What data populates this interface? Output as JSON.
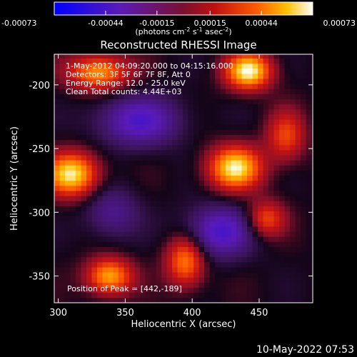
{
  "chart_data": {
    "type": "heatmap",
    "title": "Reconstructed RHESSI Image",
    "xlabel": "Heliocentric X (arcsec)",
    "ylabel": "Heliocentric Y (arcsec)",
    "xlim": [
      297,
      490
    ],
    "ylim": [
      -371,
      -176
    ],
    "xticks": [
      300,
      350,
      400,
      450
    ],
    "yticks": [
      -200,
      -250,
      -300,
      -350
    ],
    "colorbar": {
      "min": -0.00073,
      "max": 0.00073,
      "ticks": [
        "-0.00073",
        "-0.00044",
        "-0.00015",
        "0.00015",
        "0.00044",
        "0.00073"
      ],
      "unit_prefix": "(photons cm",
      "unit_exp1": "-2",
      "unit_mid": " s",
      "unit_exp2": "-1",
      "unit_mid2": " asec",
      "unit_exp3": "-2",
      "unit_suffix": ")"
    },
    "annotations": {
      "line1": "1-May-2012 04:09:20.000 to 04:15:16.000",
      "line2": "Detectors: 3F 5F 6F 7F 8F, Att 0",
      "line3": "Energy Range: 12.0 - 25.0 keV",
      "line4": "Clean    Total counts: 4.44E+03",
      "peak": "Position of Peak = [442,-189]"
    },
    "peak": [
      442,
      -189
    ],
    "blobs": [
      {
        "x": 442,
        "y": -189,
        "amp": 1.0,
        "sx": 12,
        "sy": 10
      },
      {
        "x": 432,
        "y": -265,
        "amp": 0.95,
        "sx": 14,
        "sy": 12
      },
      {
        "x": 310,
        "y": -270,
        "amp": 0.95,
        "sx": 14,
        "sy": 12
      },
      {
        "x": 330,
        "y": -190,
        "amp": 0.75,
        "sx": 16,
        "sy": 10
      },
      {
        "x": 338,
        "y": -350,
        "amp": 0.8,
        "sx": 12,
        "sy": 10
      },
      {
        "x": 395,
        "y": -338,
        "amp": 0.7,
        "sx": 10,
        "sy": 14
      },
      {
        "x": 455,
        "y": -305,
        "amp": 0.55,
        "sx": 10,
        "sy": 10
      },
      {
        "x": 470,
        "y": -240,
        "amp": 0.5,
        "sx": 10,
        "sy": 14
      },
      {
        "x": 360,
        "y": -228,
        "amp": -0.55,
        "sx": 22,
        "sy": 14
      },
      {
        "x": 420,
        "y": -315,
        "amp": -0.6,
        "sx": 18,
        "sy": 14
      },
      {
        "x": 340,
        "y": -300,
        "amp": -0.35,
        "sx": 14,
        "sy": 14
      }
    ]
  },
  "footer": {
    "timestamp": "10-May-2022 07:53"
  }
}
